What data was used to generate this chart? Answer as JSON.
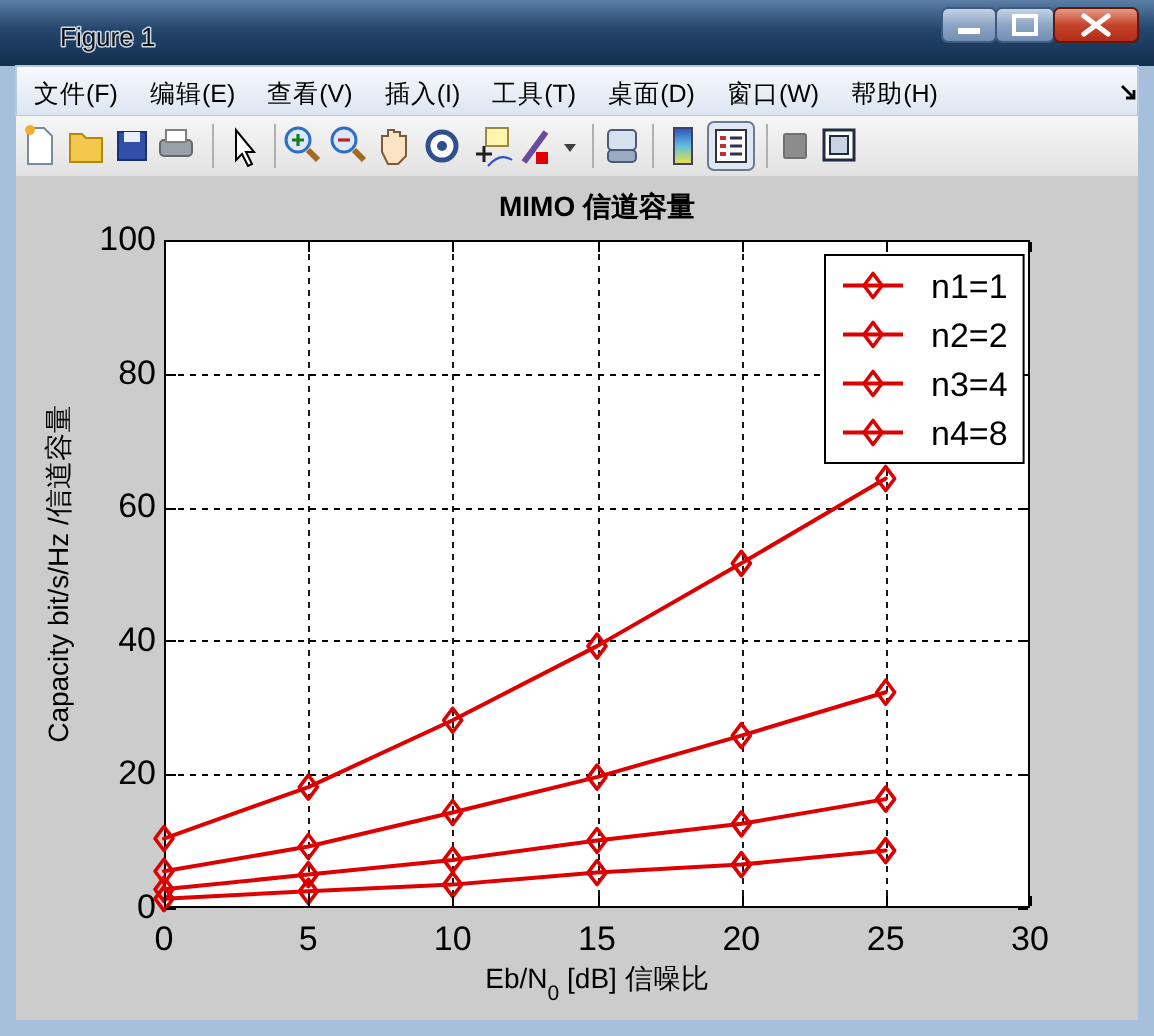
{
  "chart_data": {
    "type": "line",
    "title": "MIMO 信道容量",
    "xlabel": "Eb/N$_{0}$ [dB] 信噪比",
    "ylabel": "Capacity bit/s/Hz /信道容量",
    "x": [
      0,
      5,
      10,
      15,
      20,
      25
    ],
    "series": [
      {
        "name": "n1=1",
        "color": "#dc0000",
        "values": [
          1.4,
          2.5,
          3.5,
          5.3,
          6.5,
          8.6
        ]
      },
      {
        "name": "n2=2",
        "color": "#dc0000",
        "values": [
          2.8,
          5.0,
          7.2,
          10.1,
          12.6,
          16.3
        ]
      },
      {
        "name": "n3=4",
        "color": "#dc0000",
        "values": [
          5.5,
          9.2,
          14.3,
          19.6,
          25.8,
          32.3
        ]
      },
      {
        "name": "n4=8",
        "color": "#dc0000",
        "values": [
          10.4,
          18.1,
          28.1,
          39.2,
          51.6,
          64.3
        ]
      }
    ],
    "xlim": [
      0,
      30
    ],
    "ylim": [
      0,
      100
    ],
    "xticks": [
      0,
      5,
      10,
      15,
      20,
      25,
      30
    ],
    "yticks": [
      0,
      20,
      40,
      60,
      80,
      100
    ],
    "grid": true,
    "legend": "top right",
    "marker": "diamond",
    "line_style": "solid",
    "annotations": [
      "Figure 1",
      "文件(F)",
      "编辑(E)",
      "查看(V)",
      "插入(I)",
      "工具(T)",
      "桌面(D)",
      "窗口(W)",
      "帮助(H)"
    ]
  }
}
